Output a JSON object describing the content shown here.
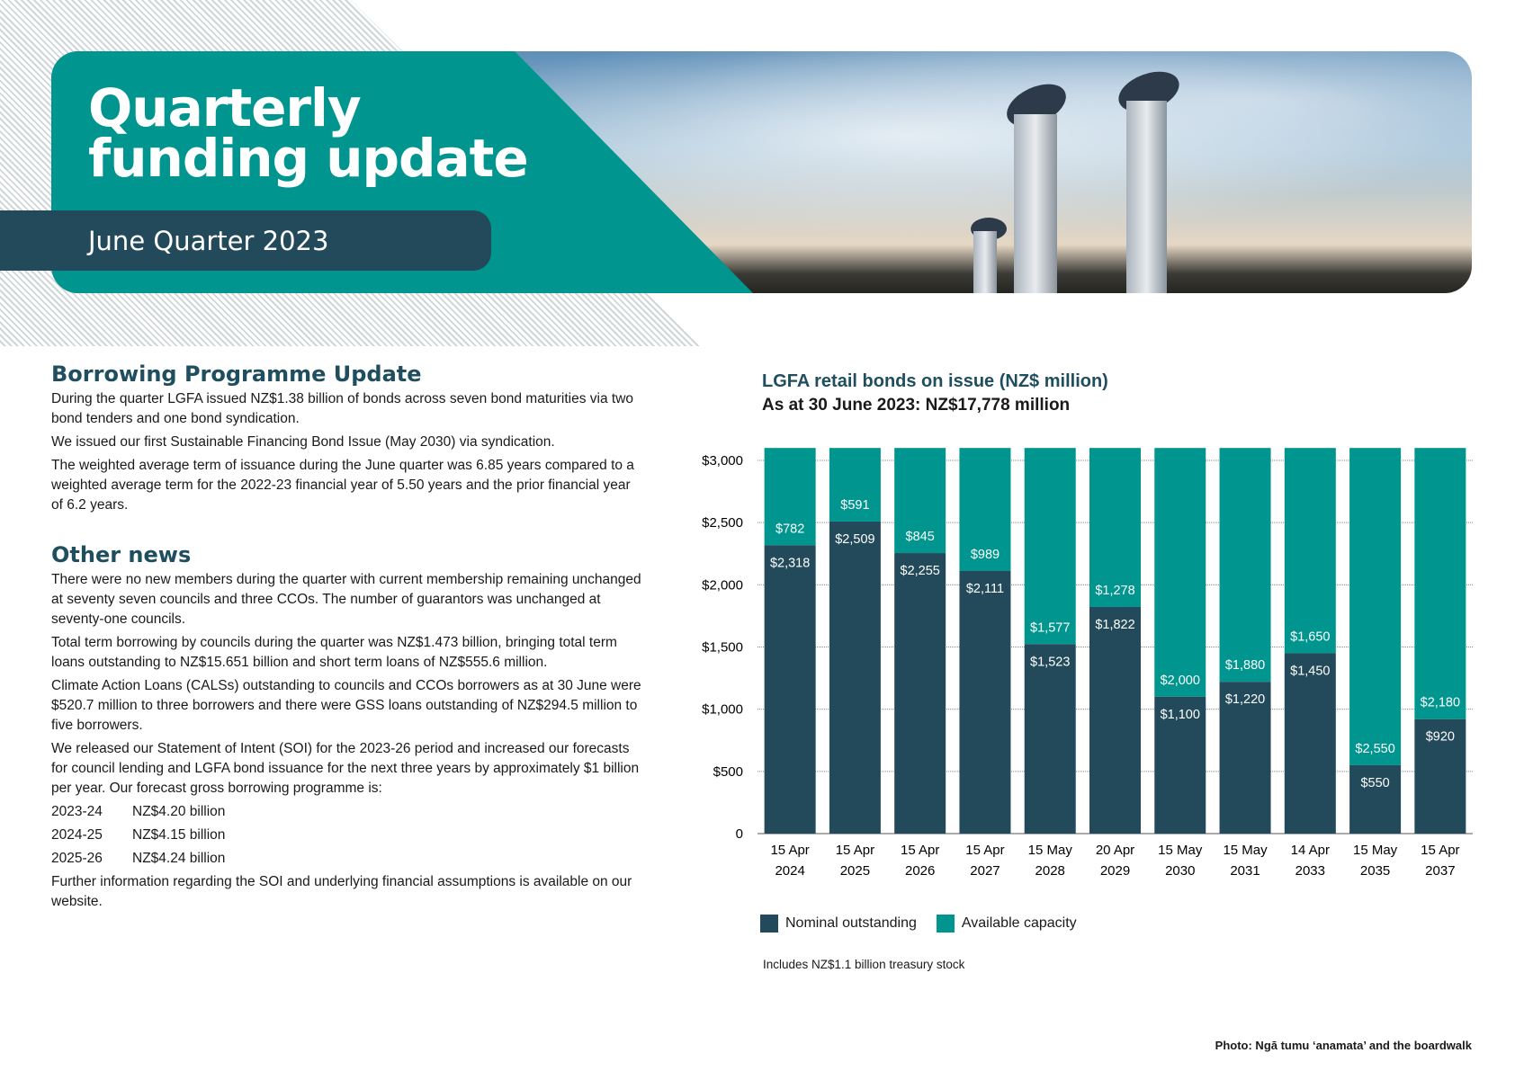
{
  "header": {
    "title_line1": "Quarterly",
    "title_line2": "funding update",
    "subtitle": "June Quarter 2023"
  },
  "borrowing": {
    "heading": "Borrowing Programme Update",
    "paragraphs": [
      "During the quarter LGFA issued NZ$1.38 billion of bonds across seven bond maturities via two bond tenders and one bond syndication.",
      "We issued our first Sustainable Financing Bond Issue (May 2030) via syndication.",
      "The weighted average term of issuance during the June quarter was 6.85 years compared to a weighted average term for the 2022-23 financial year of 5.50 years and the prior financial year of 6.2 years."
    ]
  },
  "other_news": {
    "heading": "Other news",
    "paragraphs": [
      "There were no new members during the quarter with current  membership remaining unchanged at seventy seven councils and three CCOs. The number of guarantors was unchanged at seventy-one councils.",
      "Total term borrowing by councils during the quarter was NZ$1.473 billion, bringing total term loans outstanding to NZ$15.651 billion and short term loans of NZ$555.6 million.",
      "Climate Action Loans (CALSs) outstanding to councils and CCOs borrowers as at 30 June were $520.7 million to three borrowers and there were GSS loans outstanding of NZ$294.5 million to five borrowers.",
      "We released our Statement of Intent (SOI) for the 2023-26 period and increased our forecasts for council lending and LGFA bond issuance for the next three years by approximately $1 billion per year. Our forecast gross borrowing programme is:"
    ],
    "forecast": [
      {
        "year": "2023-24",
        "amount": "NZ$4.20 billion"
      },
      {
        "year": "2024-25",
        "amount": "NZ$4.15 billion"
      },
      {
        "year": "2025-26",
        "amount": "NZ$4.24 billion"
      }
    ],
    "closing": "Further information regarding the SOI and underlying financial assumptions is available on our website."
  },
  "chart_data": {
    "type": "bar",
    "stacked": true,
    "title": "LGFA retail bonds on issue (NZ$ million)",
    "subtitle": "As at 30 June 2023: NZ$17,778 million",
    "categories": [
      [
        "15 Apr",
        "2024"
      ],
      [
        "15 Apr",
        "2025"
      ],
      [
        "15 Apr",
        "2026"
      ],
      [
        "15 Apr",
        "2027"
      ],
      [
        "15 May",
        "2028"
      ],
      [
        "20 Apr",
        "2029"
      ],
      [
        "15 May",
        "2030"
      ],
      [
        "15 May",
        "2031"
      ],
      [
        "14 Apr",
        "2033"
      ],
      [
        "15 May",
        "2035"
      ],
      [
        "15 Apr",
        "2037"
      ]
    ],
    "series": [
      {
        "name": "Nominal outstanding",
        "color": "#234a5a",
        "values": [
          2318,
          2509,
          2255,
          2111,
          1523,
          1822,
          1100,
          1220,
          1450,
          550,
          920
        ]
      },
      {
        "name": "Available capacity",
        "color": "#00958e",
        "values": [
          782,
          591,
          845,
          989,
          1577,
          1278,
          2000,
          1880,
          1650,
          2550,
          2180
        ]
      }
    ],
    "yticks": [
      "0",
      "$500",
      "$1,000",
      "$1,500",
      "$2,000",
      "$2,500",
      "$3,000"
    ],
    "ytick_values": [
      0,
      500,
      1000,
      1500,
      2000,
      2500,
      3000
    ],
    "ylim": [
      0,
      3100
    ],
    "grid": true,
    "legend": "bottom-left",
    "note": "Includes NZ$1.1 billion treasury stock"
  },
  "caption": "Photo: Ngā tumu ‘anamata’ and the boardwalk"
}
